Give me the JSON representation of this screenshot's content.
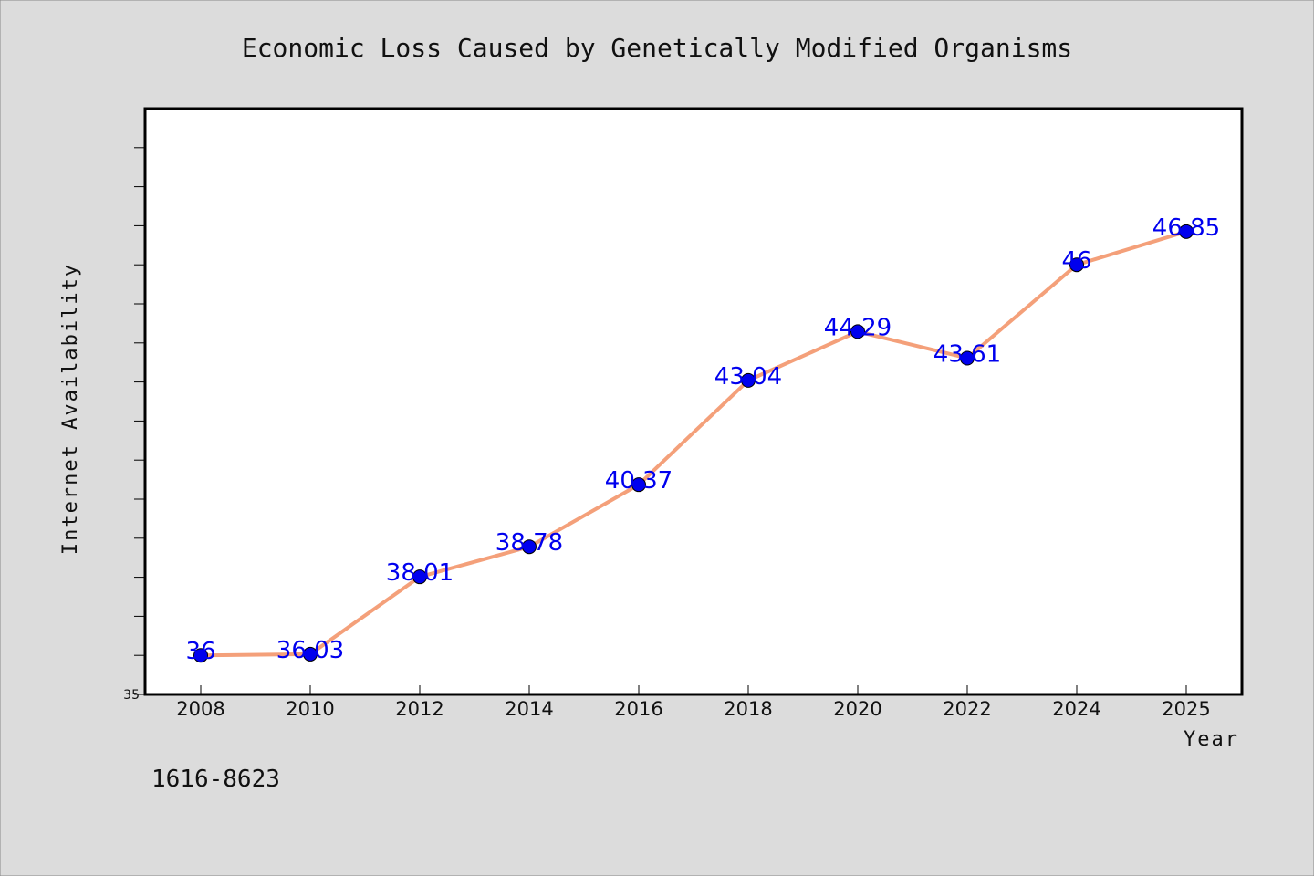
{
  "chart_data": {
    "type": "line",
    "title": "Economic Loss Caused by Genetically Modified Organisms",
    "xlabel": "Year",
    "ylabel": "Internet Availability",
    "x": [
      "2008",
      "2010",
      "2012",
      "2014",
      "2016",
      "2018",
      "2020",
      "2022",
      "2024",
      "2025"
    ],
    "series": [
      {
        "values": [
          36,
          36.03,
          38.01,
          38.78,
          40.37,
          43.04,
          44.29,
          43.61,
          46,
          46.85
        ],
        "data_labels": [
          "36",
          "36.03",
          "38.01",
          "38.78",
          "40.37",
          "43.04",
          "44.29",
          "43.61",
          "46",
          "46.85"
        ],
        "line_color": "#f4a07a",
        "marker_color": "#0000ee"
      }
    ],
    "ylim": [
      35,
      50
    ],
    "y_tick_labels": [
      "35"
    ],
    "grid": false,
    "legend": "none"
  },
  "footer_code": "1616-8623",
  "colors": {
    "background": "#dcdcdc",
    "plot_area": "#ffffff",
    "label_color": "#0000ee"
  }
}
